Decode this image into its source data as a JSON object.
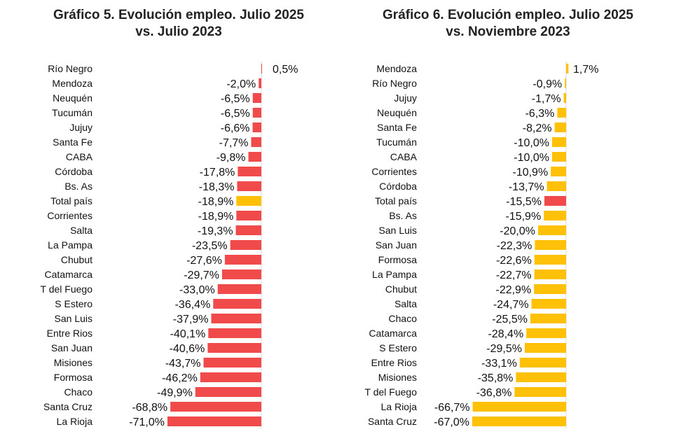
{
  "chart_data": [
    {
      "type": "bar",
      "orientation": "horizontal",
      "title": [
        "Gráfico 5. Evolución empleo. Julio 2025",
        "vs. Julio 2023"
      ],
      "xlabel": "",
      "ylabel": "",
      "xlim": [
        -71.0,
        0.5
      ],
      "highlight_category": "Total país",
      "colors": {
        "default": "#f04a4a",
        "highlight": "#ffc107"
      },
      "categories": [
        "Río Negro",
        "Mendoza",
        "Neuquén",
        "Tucumán",
        "Jujuy",
        "Santa Fe",
        "CABA",
        "Córdoba",
        "Bs. As",
        "Total país",
        "Corrientes",
        "Salta",
        "La Pampa",
        "Chubut",
        "Catamarca",
        "T del Fuego",
        "S Estero",
        "San Luis",
        "Entre Rios",
        "San Juan",
        "Misiones",
        "Formosa",
        "Chaco",
        "Santa Cruz",
        "La Rioja"
      ],
      "values": [
        0.5,
        -2.0,
        -6.5,
        -6.5,
        -6.6,
        -7.7,
        -9.8,
        -17.8,
        -18.3,
        -18.9,
        -18.9,
        -19.3,
        -23.5,
        -27.6,
        -29.7,
        -33.0,
        -36.4,
        -37.9,
        -40.1,
        -40.6,
        -43.7,
        -46.2,
        -49.9,
        -68.8,
        -71.0
      ],
      "labels": [
        "0,5%",
        "-2,0%",
        "-6,5%",
        "-6,5%",
        "-6,6%",
        "-7,7%",
        "-9,8%",
        "-17,8%",
        "-18,3%",
        "-18,9%",
        "-18,9%",
        "-19,3%",
        "-23,5%",
        "-27,6%",
        "-29,7%",
        "-33,0%",
        "-36,4%",
        "-37,9%",
        "-40,1%",
        "-40,6%",
        "-43,7%",
        "-46,2%",
        "-49,9%",
        "-68,8%",
        "-71,0%"
      ]
    },
    {
      "type": "bar",
      "orientation": "horizontal",
      "title": [
        "Gráfico 6. Evolución empleo. Julio 2025",
        "vs. Noviembre 2023"
      ],
      "xlabel": "",
      "ylabel": "",
      "xlim": [
        -67.0,
        1.7
      ],
      "highlight_category": "Total país",
      "colors": {
        "default": "#ffc107",
        "highlight": "#f04a4a"
      },
      "categories": [
        "Mendoza",
        "Río Negro",
        "Jujuy",
        "Neuquén",
        "Santa Fe",
        "Tucumán",
        "CABA",
        "Corrientes",
        "Córdoba",
        "Total país",
        "Bs. As",
        "San Luis",
        "San Juan",
        "Formosa",
        "La Pampa",
        "Chubut",
        "Salta",
        "Chaco",
        "Catamarca",
        "S Estero",
        "Entre Rios",
        "Misiones",
        "T del Fuego",
        "La Rioja",
        "Santa Cruz"
      ],
      "values": [
        1.7,
        -0.9,
        -1.7,
        -6.3,
        -8.2,
        -10.0,
        -10.0,
        -10.9,
        -13.7,
        -15.5,
        -15.9,
        -20.0,
        -22.3,
        -22.6,
        -22.7,
        -22.9,
        -24.7,
        -25.5,
        -28.4,
        -29.5,
        -33.1,
        -35.8,
        -36.8,
        -66.7,
        -67.0
      ],
      "labels": [
        "1,7%",
        "-0,9%",
        "-1,7%",
        "-6,3%",
        "-8,2%",
        "-10,0%",
        "-10,0%",
        "-10,9%",
        "-13,7%",
        "-15,5%",
        "-15,9%",
        "-20,0%",
        "-22,3%",
        "-22,6%",
        "-22,7%",
        "-22,9%",
        "-24,7%",
        "-25,5%",
        "-28,4%",
        "-29,5%",
        "-33,1%",
        "-35,8%",
        "-36,8%",
        "-66,7%",
        "-67,0%"
      ]
    }
  ]
}
